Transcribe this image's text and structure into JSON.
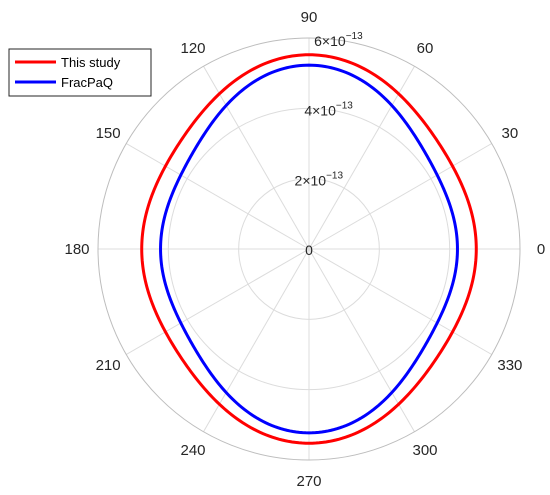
{
  "chart_data": {
    "type": "line",
    "subtype": "polar",
    "title": "",
    "theta_ticks": [
      "0",
      "30",
      "60",
      "90",
      "120",
      "150",
      "180",
      "210",
      "240",
      "270",
      "300",
      "330"
    ],
    "r_ticks": [
      {
        "value": 0,
        "label": "0"
      },
      {
        "value": 2e-13,
        "base": "2×10",
        "exp": "−13"
      },
      {
        "value": 4e-13,
        "base": "4×10",
        "exp": "−13"
      },
      {
        "value": 6e-13,
        "base": "6×10",
        "exp": "−13"
      }
    ],
    "rlim": [
      0,
      6e-13
    ],
    "grid": true,
    "legend_position": "top-left",
    "series": [
      {
        "name": "This study",
        "color": "#ff0000",
        "theta_deg": [
          0,
          30,
          60,
          90,
          120,
          150,
          180,
          210,
          240,
          270,
          300,
          330
        ],
        "r": [
          4.72e-13,
          4.75e-13,
          5.06e-13,
          5.56e-13,
          5.07e-13,
          4.76e-13,
          4.72e-13,
          4.76e-13,
          5.07e-13,
          5.56e-13,
          5.06e-13,
          4.75e-13
        ]
      },
      {
        "name": "FracPaQ",
        "color": "#0000ff",
        "theta_deg": [
          0,
          30,
          60,
          90,
          120,
          150,
          180,
          210,
          240,
          270,
          300,
          330
        ],
        "r": [
          4.17e-13,
          4.26e-13,
          4.66e-13,
          5.28e-13,
          4.67e-13,
          4.27e-13,
          4.17e-13,
          4.27e-13,
          4.67e-13,
          5.28e-13,
          4.66e-13,
          4.26e-13
        ]
      }
    ]
  }
}
